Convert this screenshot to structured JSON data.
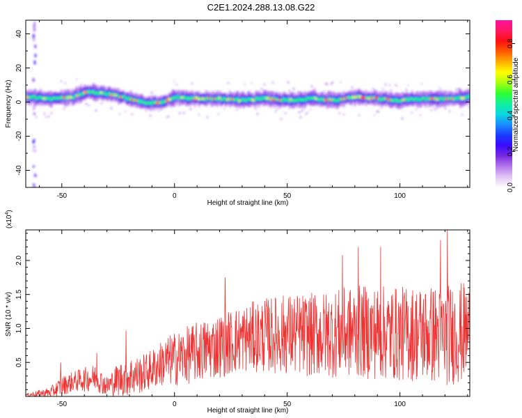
{
  "title": "C2E1.2024.288.13.08.G22",
  "chart_data": [
    {
      "type": "heatmap",
      "xlabel": "Height of straight line (km)",
      "ylabel": "Frequency (Hz)",
      "xlim": [
        -66,
        131
      ],
      "ylim": [
        -50,
        48
      ],
      "xticks": [
        -50,
        0,
        50,
        100
      ],
      "yticks": [
        40,
        20,
        0,
        -20,
        -40
      ],
      "ridge": {
        "description_x_km": [
          -66,
          -55,
          -45,
          -40,
          -30,
          -20,
          -12,
          -5,
          0,
          10,
          20,
          30,
          40,
          50,
          60,
          70,
          80,
          90,
          100,
          110,
          120,
          131
        ],
        "center_freq_hz": [
          3,
          2,
          3,
          6,
          5,
          2,
          -1,
          0,
          3,
          2,
          2,
          1,
          2,
          1,
          2,
          1,
          3,
          2,
          1,
          2,
          2,
          3
        ]
      },
      "colorbar": {
        "label": "Normalized spectral amplitude",
        "range": [
          0.0,
          0.93
        ],
        "ticks": [
          "0.0",
          "0.2",
          "0.4",
          "0.6",
          "0.8"
        ],
        "colors": [
          "#ffffff",
          "#e3c6f4",
          "#b478ec",
          "#7a2ae0",
          "#3a0aff",
          "#1a3cff",
          "#1a8cff",
          "#0ad8e0",
          "#10f0a0",
          "#30ff30",
          "#a8ff10",
          "#ffff00",
          "#ffb000",
          "#ff5a00",
          "#ff1010",
          "#ff1860",
          "#ff10a0"
        ]
      }
    },
    {
      "type": "line",
      "xlabel": "Height of straight line (km)",
      "ylabel": "SNR (10 * v/v)",
      "multiplier_label": "(x10",
      "multiplier_exp": "4",
      "xlim": [
        -66,
        131
      ],
      "ylim": [
        0,
        24500
      ],
      "xticks": [
        -50,
        0,
        50,
        100
      ],
      "yticks": [
        {
          "value": 5000,
          "label": "0.5"
        },
        {
          "value": 10000,
          "label": "1.0"
        },
        {
          "value": 15000,
          "label": "1.5"
        },
        {
          "value": 20000,
          "label": "2.0"
        }
      ],
      "color": "#ee3333",
      "envelope": {
        "x": [
          -66,
          -55,
          -50,
          -45,
          -40,
          -35,
          -30,
          -25,
          -20,
          -15,
          -10,
          -5,
          0,
          10,
          20,
          30,
          40,
          50,
          60,
          70,
          80,
          90,
          100,
          110,
          120,
          131
        ],
        "base": [
          200,
          600,
          1500,
          2200,
          2500,
          2800,
          1500,
          2500,
          3000,
          3200,
          4000,
          5000,
          5500,
          6500,
          7500,
          8500,
          9000,
          9200,
          9000,
          9200,
          9500,
          9400,
          9200,
          9300,
          9000,
          9500
        ],
        "amp": [
          200,
          800,
          1500,
          1500,
          1800,
          2000,
          1500,
          2500,
          3000,
          2800,
          3000,
          3500,
          4000,
          4500,
          4800,
          5000,
          5500,
          6000,
          6200,
          6500,
          6800,
          7000,
          7000,
          7200,
          7500,
          7500
        ]
      },
      "peaks": [
        {
          "x": -50.5,
          "y": 5000
        },
        {
          "x": -34.5,
          "y": 6400
        },
        {
          "x": -21.5,
          "y": 9700
        },
        {
          "x": 22.5,
          "y": 17500
        },
        {
          "x": 74.5,
          "y": 20800
        },
        {
          "x": 81.5,
          "y": 22000
        },
        {
          "x": 91.5,
          "y": 22000
        },
        {
          "x": 118,
          "y": 23000
        },
        {
          "x": 121,
          "y": 24500
        }
      ]
    }
  ]
}
